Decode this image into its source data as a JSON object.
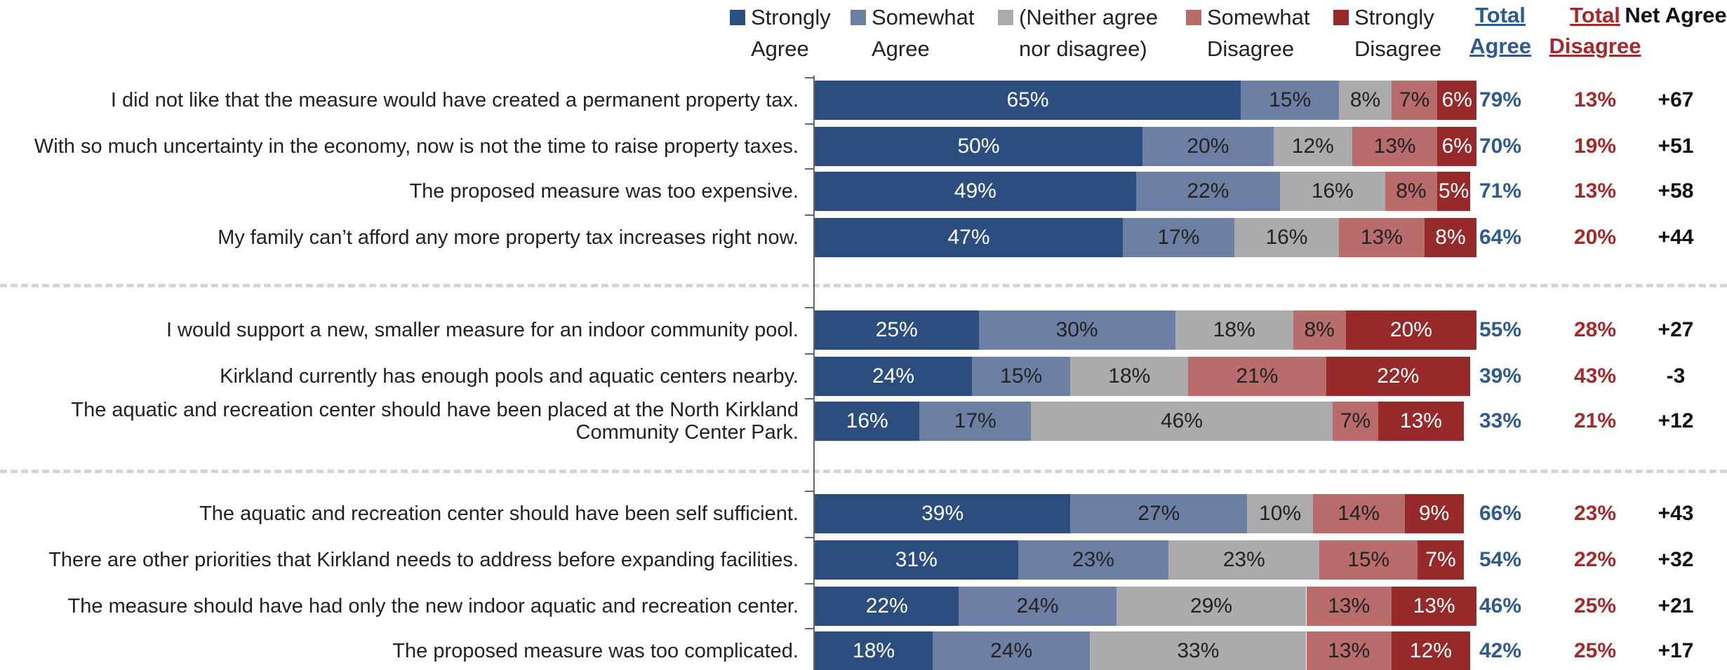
{
  "chart_data": {
    "type": "stacked-bar-horizontal",
    "categories": [
      "I did not like that the measure would have created a permanent property tax.",
      "With so much uncertainty in the economy, now is not the time to raise property taxes.",
      "The proposed measure was too expensive.",
      "My family can’t afford any more property tax increases right now.",
      "I would support a new, smaller measure for an indoor community pool.",
      "Kirkland currently has enough pools and aquatic centers nearby.",
      "The aquatic and recreation center should have been placed at the North Kirkland Community Center Park.",
      "The aquatic and recreation center should have been self sufficient.",
      "There are other priorities that Kirkland needs to address before expanding facilities.",
      "The measure should have had only the new indoor aquatic and recreation center.",
      "The proposed measure was too complicated."
    ],
    "xlim": [
      0,
      100
    ],
    "series": [
      {
        "name": "Strongly Agree",
        "color": "#2b4e7e",
        "values": [
          65,
          50,
          49,
          47,
          25,
          24,
          16,
          39,
          31,
          22,
          18
        ],
        "value_labels": [
          "65%",
          "50%",
          "49%",
          "47%",
          "25%",
          "24%",
          "16%",
          "39%",
          "31%",
          "22%",
          "18%"
        ]
      },
      {
        "name": "Somewhat Agree",
        "color": "#6d80a4",
        "values": [
          15,
          20,
          22,
          17,
          30,
          15,
          17,
          27,
          23,
          24,
          24
        ],
        "value_labels": [
          "15%",
          "20%",
          "22%",
          "17%",
          "30%",
          "15%",
          "17%",
          "27%",
          "23%",
          "24%",
          "24%"
        ]
      },
      {
        "name": "(Neither agree nor disagree)",
        "color": "#ababad",
        "values": [
          8,
          12,
          16,
          16,
          18,
          18,
          46,
          10,
          23,
          29,
          33
        ],
        "value_labels": [
          "8%",
          "12%",
          "16%",
          "16%",
          "18%",
          "18%",
          "46%",
          "10%",
          "23%",
          "29%",
          "33%"
        ]
      },
      {
        "name": "Somewhat Disagree",
        "color": "#b86c6c",
        "values": [
          7,
          13,
          8,
          13,
          8,
          21,
          7,
          14,
          15,
          13,
          13
        ],
        "value_labels": [
          "7%",
          "13%",
          "8%",
          "13%",
          "8%",
          "21%",
          "7%",
          "14%",
          "15%",
          "13%",
          "13%"
        ]
      },
      {
        "name": "Strongly Disagree",
        "color": "#962a2a",
        "values": [
          6,
          6,
          5,
          8,
          20,
          22,
          13,
          9,
          7,
          13,
          12
        ],
        "value_labels": [
          "6%",
          "6%",
          "5%",
          "8%",
          "20%",
          "22%",
          "13%",
          "9%",
          "7%",
          "13%",
          "12%"
        ]
      }
    ],
    "columns": [
      {
        "header": "Total Agree",
        "color": "#2e5a8c",
        "values": [
          79,
          70,
          71,
          64,
          55,
          39,
          33,
          66,
          54,
          46,
          42
        ],
        "value_labels": [
          "79%",
          "70%",
          "71%",
          "64%",
          "55%",
          "39%",
          "33%",
          "66%",
          "54%",
          "46%",
          "42%"
        ]
      },
      {
        "header": "Total Disagree",
        "color": "#a3292b",
        "values": [
          13,
          19,
          13,
          20,
          28,
          43,
          21,
          23,
          22,
          25,
          25
        ],
        "value_labels": [
          "13%",
          "19%",
          "13%",
          "20%",
          "28%",
          "43%",
          "21%",
          "23%",
          "22%",
          "25%",
          "25%"
        ]
      },
      {
        "header": "Net Agree",
        "color": "#111111",
        "values": [
          67,
          51,
          58,
          44,
          27,
          -3,
          12,
          43,
          32,
          21,
          17
        ],
        "value_labels": [
          "+67",
          "+51",
          "+58",
          "+44",
          "+27",
          "-3",
          "+12",
          "+43",
          "+32",
          "+21",
          "+17"
        ]
      }
    ]
  }
}
